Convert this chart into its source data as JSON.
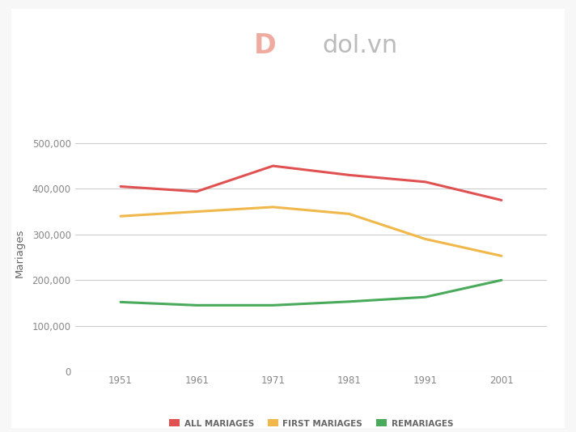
{
  "years": [
    1951,
    1961,
    1971,
    1981,
    1991,
    2001
  ],
  "all_mariages": [
    405000,
    394000,
    450000,
    430000,
    415000,
    375000
  ],
  "first_mariages": [
    340000,
    350000,
    360000,
    345000,
    290000,
    253000
  ],
  "remariages": [
    152000,
    145000,
    145000,
    153000,
    163000,
    200000
  ],
  "line_colors": {
    "all": "#e05252",
    "first": "#f0b84a",
    "re": "#4aaa5c"
  },
  "ylabel": "Mariages",
  "ylim": [
    0,
    520000
  ],
  "yticks": [
    0,
    100000,
    200000,
    300000,
    400000,
    500000
  ],
  "ytick_labels": [
    "0",
    "100,000",
    "200,000",
    "300,000",
    "400,000",
    "500,000"
  ],
  "xtick_labels": [
    "1951",
    "1961",
    "1971",
    "1981",
    "1991",
    "2001"
  ],
  "legend_labels": [
    "ALL MARIAGES",
    "FIRST MARIAGES",
    "REMARIAGES"
  ],
  "background_color": "#f7f7f7",
  "plot_bg": "#ffffff",
  "grid_color": "#cccccc",
  "line_width": 2.2,
  "font_color": "#666666",
  "tick_font_color": "#888888",
  "logo_text": "dol.vn",
  "logo_color": "#bbbbbb",
  "logo_fontsize": 22
}
